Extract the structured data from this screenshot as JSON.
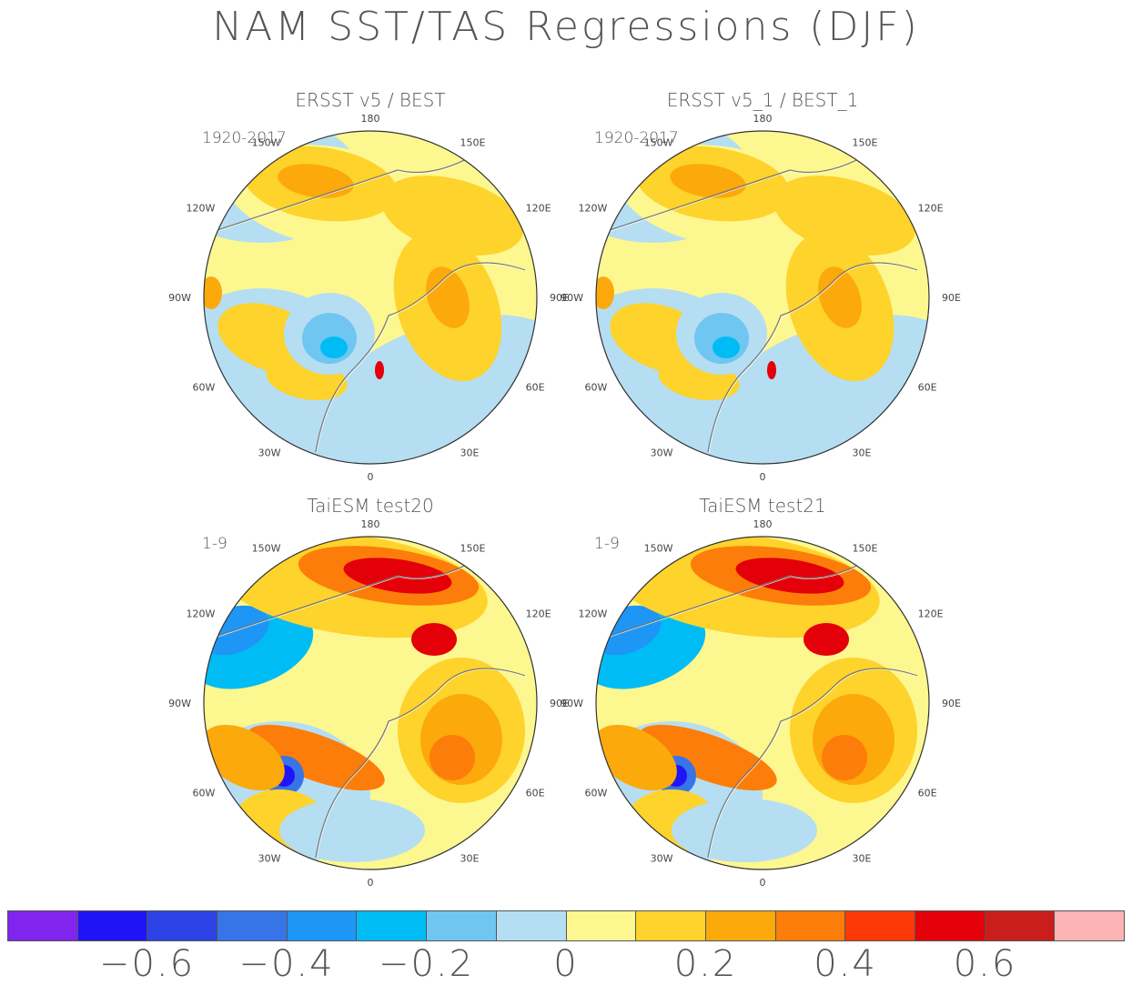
{
  "title": "NAM SST/TAS Regressions (DJF)",
  "panels": [
    {
      "title": "ERSST v5 / BEST",
      "period": "1920-2017",
      "style": "obs"
    },
    {
      "title": "ERSST v5_1 / BEST_1",
      "period": "1920-2017",
      "style": "obs"
    },
    {
      "title": "TaiESM test20",
      "period": "1-9",
      "style": "model"
    },
    {
      "title": "TaiESM test21",
      "period": "1-9",
      "style": "model"
    }
  ],
  "longitude_labels": [
    "180",
    "150E",
    "120E",
    "90E",
    "60E",
    "30E",
    "0",
    "30W",
    "60W",
    "90W",
    "120W",
    "150W"
  ],
  "colorbar": {
    "colors": [
      "#8024ee",
      "#1f14f5",
      "#2c42e6",
      "#3774e8",
      "#1e96f5",
      "#00bcf5",
      "#6fc6f0",
      "#b5def2",
      "#fdf790",
      "#fdd32c",
      "#fca90b",
      "#fd7d0a",
      "#fd3a07",
      "#e30008",
      "#c91e1c",
      "#fdb4b4"
    ],
    "tick_labels": [
      "−0.6",
      "−0.4",
      "−0.2",
      "0",
      "0.2",
      "0.4",
      "0.6"
    ]
  },
  "chart_data": {
    "type": "heatmap",
    "projection": "north polar stereographic",
    "variable": "NAM SST/TAS regression (DJF)",
    "color_levels": [
      -0.7,
      -0.6,
      -0.5,
      -0.4,
      -0.3,
      -0.2,
      -0.1,
      0,
      0.1,
      0.2,
      0.3,
      0.4,
      0.5,
      0.6,
      0.7
    ],
    "colorbar_tick_values": [
      -0.6,
      -0.4,
      -0.2,
      0,
      0.2,
      0.4,
      0.6
    ]
  }
}
